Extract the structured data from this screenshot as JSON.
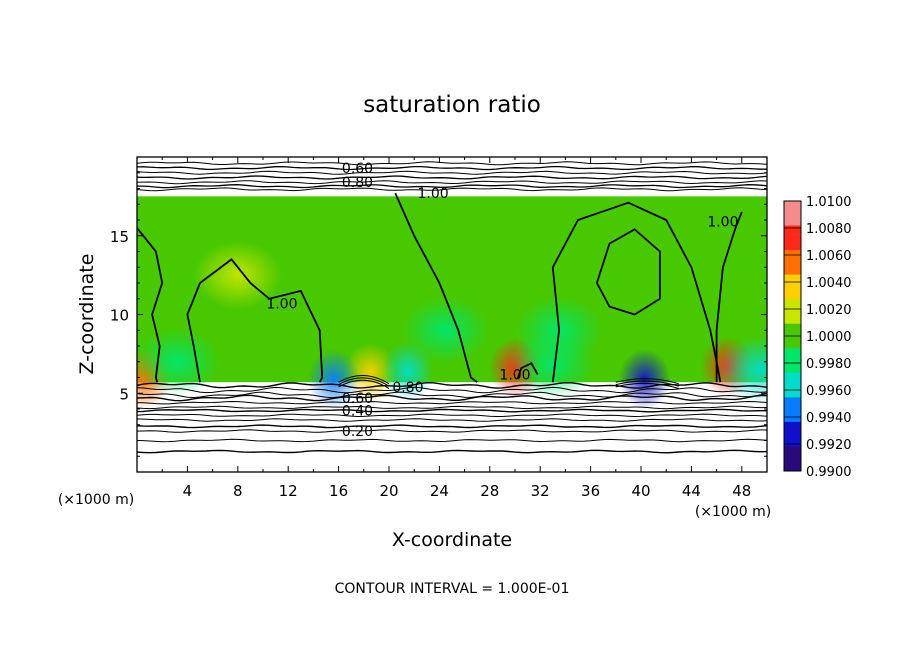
{
  "chart_data": {
    "type": "heatmap",
    "title": "saturation ratio",
    "xlabel": "X-coordinate",
    "ylabel": "Z-coordinate",
    "x_unit": "(×1000 m)",
    "x_unit_right": "(×1000 m)",
    "footer": "CONTOUR INTERVAL = 1.000E-01",
    "xlim": [
      0,
      50
    ],
    "ylim": [
      0,
      20
    ],
    "xticks": [
      "4",
      "8",
      "12",
      "16",
      "20",
      "24",
      "28",
      "32",
      "36",
      "40",
      "44",
      "48"
    ],
    "yticks": [
      "5",
      "10",
      "15"
    ],
    "colorbar": {
      "labels": [
        "1.0100",
        "1.0080",
        "1.0060",
        "1.0040",
        "1.0020",
        "1.0000",
        "0.9980",
        "0.9960",
        "0.9940",
        "0.9920",
        "0.9900"
      ],
      "colors": [
        "#f58c8c",
        "#ff2a1a",
        "#ff7000",
        "#ffd000",
        "#c8e600",
        "#48c800",
        "#00e66a",
        "#00dccc",
        "#0a7cff",
        "#1010cc",
        "#2a0a7a"
      ]
    },
    "contour_interval": 0.1,
    "contour_labels": [
      {
        "text": "0.60",
        "x": 17.5,
        "y": 19.3
      },
      {
        "text": "0.80",
        "x": 17.5,
        "y": 18.4
      },
      {
        "text": "1.00",
        "x": 23.5,
        "y": 17.7
      },
      {
        "text": "1.00",
        "x": 11.5,
        "y": 10.7
      },
      {
        "text": "1.00",
        "x": 46.5,
        "y": 15.9
      },
      {
        "text": "1.00",
        "x": 30.0,
        "y": 6.2
      },
      {
        "text": "0.80",
        "x": 21.5,
        "y": 5.4
      },
      {
        "text": "0.60",
        "x": 17.5,
        "y": 4.7
      },
      {
        "text": "0.40",
        "x": 17.5,
        "y": 3.9
      },
      {
        "text": "0.20",
        "x": 17.5,
        "y": 2.6
      }
    ],
    "field": {
      "base": 1.0,
      "cloud_bottom_km": 5.7,
      "cloud_top_km": 17.5,
      "features": [
        {
          "x": 30.0,
          "z": 6.6,
          "value": 1.008
        },
        {
          "x": 46.8,
          "z": 6.7,
          "value": 1.009
        },
        {
          "x": 0.6,
          "z": 5.9,
          "value": 1.006
        },
        {
          "x": 18.5,
          "z": 6.3,
          "value": 1.004
        },
        {
          "x": 15.6,
          "z": 5.9,
          "value": 0.993
        },
        {
          "x": 40.3,
          "z": 5.9,
          "value": 0.992
        },
        {
          "x": 21.5,
          "z": 6.4,
          "value": 0.996
        },
        {
          "x": 33.0,
          "z": 6.8,
          "value": 0.997
        },
        {
          "x": 3.2,
          "z": 7.0,
          "value": 0.997
        },
        {
          "x": 49.5,
          "z": 6.5,
          "value": 0.9965
        },
        {
          "x": 24.5,
          "z": 9.0,
          "value": 0.9985
        },
        {
          "x": 33.5,
          "z": 9.0,
          "value": 0.9985
        },
        {
          "x": 38.5,
          "z": 11.5,
          "value": 1.001
        },
        {
          "x": 8.0,
          "z": 12.5,
          "value": 1.0012
        }
      ]
    }
  }
}
